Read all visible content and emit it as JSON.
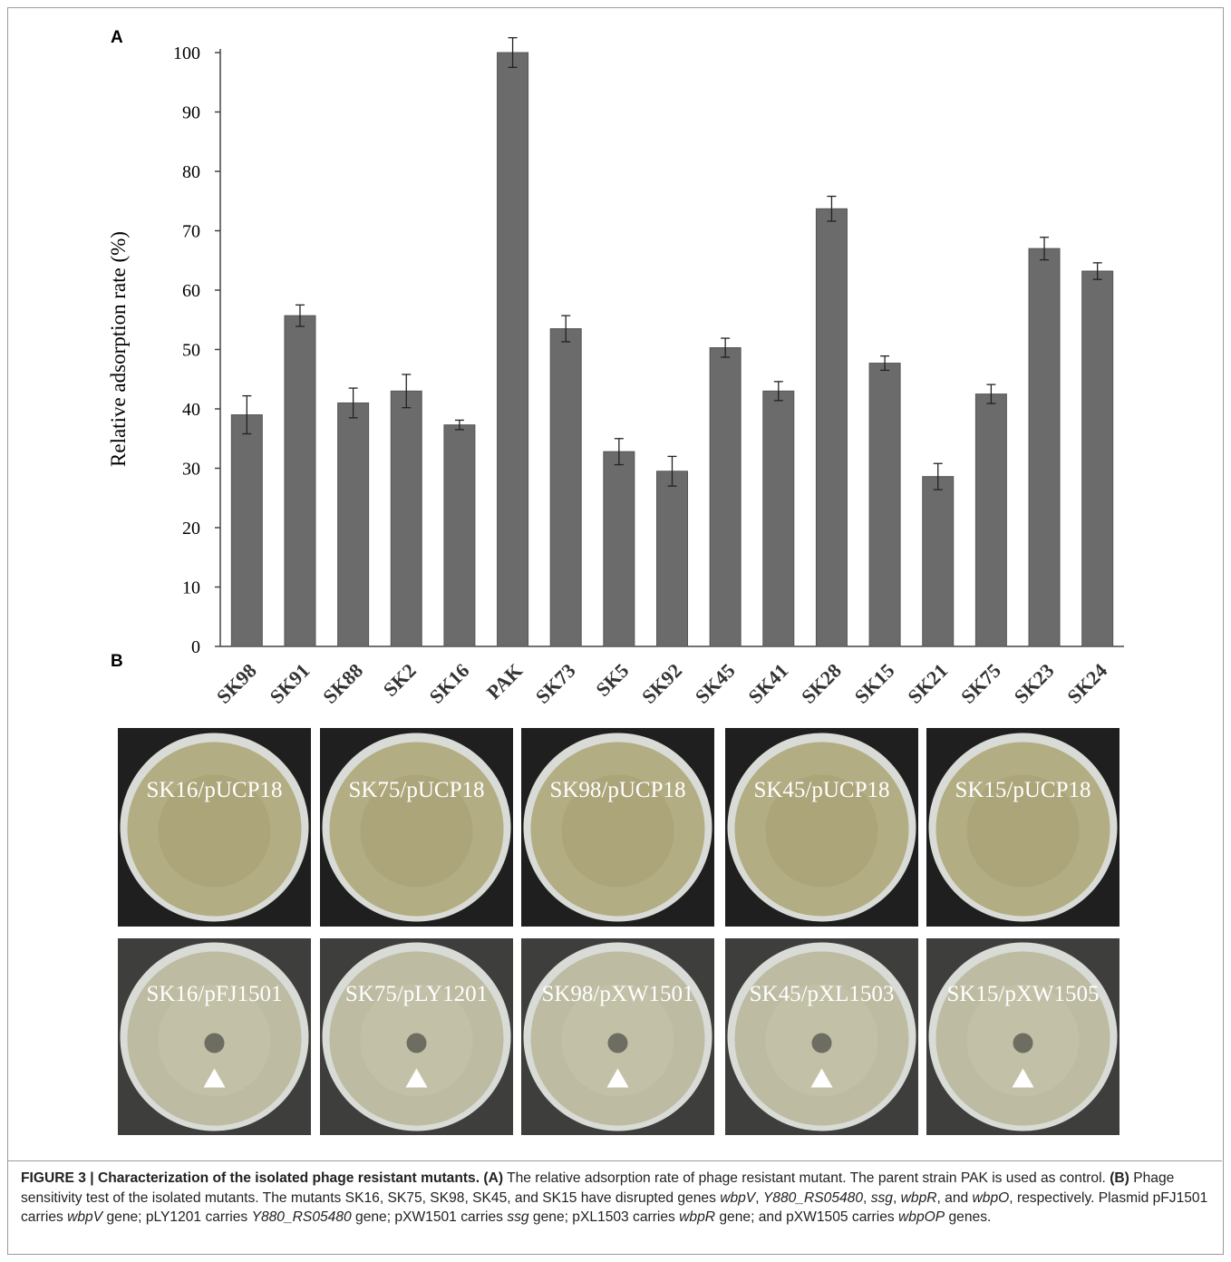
{
  "chart_data": {
    "type": "bar",
    "panel_label": "A",
    "y_label": "Relative adsorption rate (%)",
    "categories": [
      "SK98",
      "SK91",
      "SK88",
      "SK2",
      "SK16",
      "PAK",
      "SK73",
      "SK5",
      "SK92",
      "SK45",
      "SK41",
      "SK28",
      "SK15",
      "SK21",
      "SK75",
      "SK23",
      "SK24"
    ],
    "values": [
      39,
      55.7,
      41,
      43,
      37.3,
      100,
      53.5,
      32.8,
      29.5,
      50.3,
      43,
      73.7,
      47.7,
      28.6,
      42.5,
      67,
      63.2
    ],
    "errors": [
      3.2,
      1.8,
      2.5,
      2.8,
      0.8,
      2.5,
      2.2,
      2.2,
      2.5,
      1.6,
      1.6,
      2.1,
      1.2,
      2.2,
      1.6,
      1.9,
      1.4
    ],
    "color": "#6b6b6b",
    "ylim": [
      0,
      100
    ],
    "yticks": [
      0,
      10,
      20,
      30,
      40,
      50,
      60,
      70,
      80,
      90,
      100
    ],
    "grid": false
  },
  "panel_b": {
    "panel_label": "B",
    "plates": [
      [
        "SK16/pUCP18",
        "SK75/pUCP18",
        "SK98/pUCP18",
        "SK45/pUCP18",
        "SK15/pUCP18"
      ],
      [
        "SK16/pFJ1501",
        "SK75/pLY1201",
        "SK98/pXW1501",
        "SK45/pXL1503",
        "SK15/pXW1505"
      ]
    ]
  },
  "caption": [
    {
      "text": "FIGURE 3 | Characterization of the isolated phage resistant mutants. (A)",
      "style": "bold"
    },
    {
      "text": " The relative adsorption rate of phage resistant mutant. The parent strain PAK is used as control. ",
      "style": "normal"
    },
    {
      "text": "(B)",
      "style": "bold"
    },
    {
      "text": " Phage sensitivity test of the isolated mutants. The mutants SK16, SK75, SK98, SK45, and SK15 have disrupted genes ",
      "style": "normal"
    },
    {
      "text": "wbpV",
      "style": "italic"
    },
    {
      "text": ", ",
      "style": "normal"
    },
    {
      "text": "Y880_RS05480",
      "style": "italic"
    },
    {
      "text": ", ",
      "style": "normal"
    },
    {
      "text": "ssg",
      "style": "italic"
    },
    {
      "text": ", ",
      "style": "normal"
    },
    {
      "text": "wbpR",
      "style": "italic"
    },
    {
      "text": ", and ",
      "style": "normal"
    },
    {
      "text": "wbpO",
      "style": "italic"
    },
    {
      "text": ", respectively. Plasmid pFJ1501 carries ",
      "style": "normal"
    },
    {
      "text": "wbpV",
      "style": "italic"
    },
    {
      "text": " gene; pLY1201 carries ",
      "style": "normal"
    },
    {
      "text": "Y880_RS05480",
      "style": "italic"
    },
    {
      "text": " gene; pXW1501 carries ",
      "style": "normal"
    },
    {
      "text": "ssg",
      "style": "italic"
    },
    {
      "text": " gene; pXL1503 carries ",
      "style": "normal"
    },
    {
      "text": "wbpR",
      "style": "italic"
    },
    {
      "text": " gene; and pXW1505 carries ",
      "style": "normal"
    },
    {
      "text": "wbpOP",
      "style": "italic"
    },
    {
      "text": " genes.",
      "style": "normal"
    }
  ]
}
